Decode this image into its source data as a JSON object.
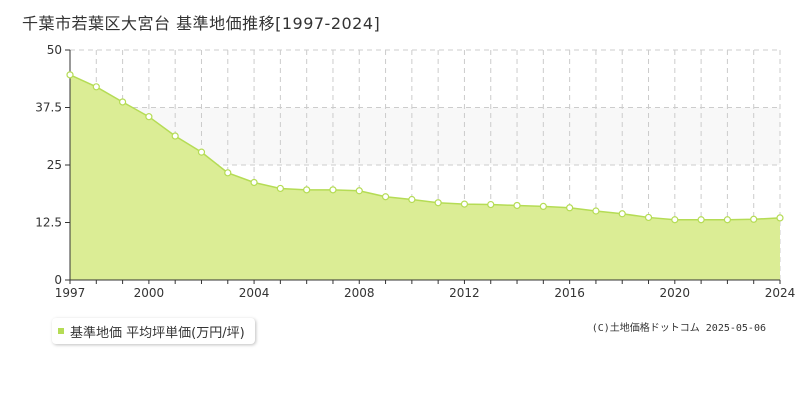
{
  "title": "千葉市若葉区大宮台 基準地価推移[1997-2024]",
  "credit": "(C)土地価格ドットコム 2025-05-06",
  "colors": {
    "line": "#b5dc55",
    "fill": "#dbed95",
    "band": "#f8f8f8",
    "grid": "#cccccc",
    "axis": "#333333",
    "marker_fill": "#ffffff"
  },
  "chart_data": {
    "type": "area",
    "x": [
      1997,
      1998,
      1999,
      2000,
      2001,
      2002,
      2003,
      2004,
      2005,
      2006,
      2007,
      2008,
      2009,
      2010,
      2011,
      2012,
      2013,
      2014,
      2015,
      2016,
      2017,
      2018,
      2019,
      2020,
      2021,
      2022,
      2023,
      2024
    ],
    "series": [
      {
        "name": "基準地価 平均坪単価(万円/坪)",
        "values": [
          44.6,
          42.0,
          38.7,
          35.5,
          31.3,
          27.8,
          23.3,
          21.2,
          19.9,
          19.6,
          19.6,
          19.4,
          18.1,
          17.5,
          16.8,
          16.5,
          16.4,
          16.2,
          16.0,
          15.7,
          15.0,
          14.4,
          13.6,
          13.1,
          13.1,
          13.1,
          13.2,
          13.5
        ]
      }
    ],
    "xticks": [
      "1997",
      "2000",
      "2004",
      "2008",
      "2012",
      "2016",
      "2020",
      "2024"
    ],
    "yticks": [
      "0",
      "12.5",
      "25",
      "37.5",
      "50"
    ],
    "ylim": [
      0,
      50
    ],
    "xlim": [
      1997,
      2024
    ],
    "grid": true,
    "legend": "bottom-left"
  }
}
